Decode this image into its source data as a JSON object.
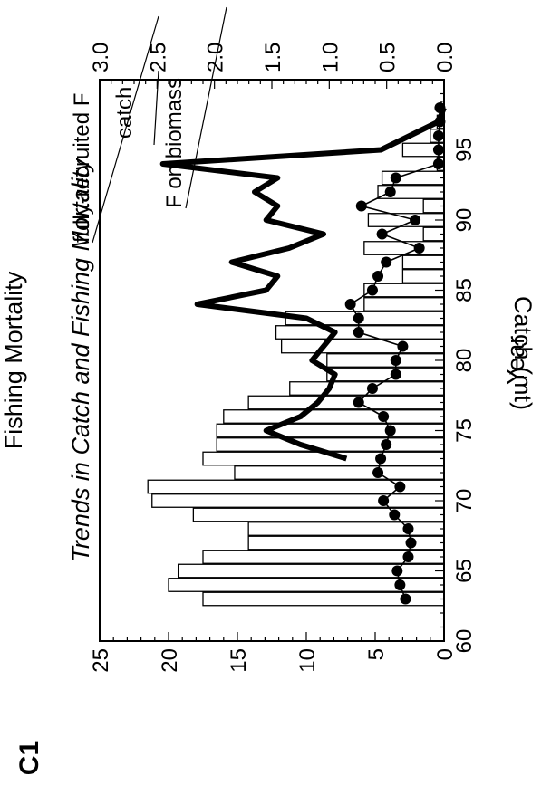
{
  "panel_label": "C1",
  "chart_data": {
    "type": "bar",
    "orientation": "rotated-90-ccw",
    "title": "Trends in Catch and Fishing Mortality",
    "xlabel": "Year",
    "ylabel": "Catch (mt)",
    "y2label": "Fishing Mortality",
    "xlim": [
      60,
      100
    ],
    "ylim": [
      0,
      25
    ],
    "y2lim": [
      0,
      3.0
    ],
    "xticks": [
      "60",
      "65",
      "70",
      "75",
      "80",
      "85",
      "90",
      "95"
    ],
    "yticks": [
      "0",
      "5",
      "10",
      "15",
      "20",
      "25"
    ],
    "y2ticks": [
      "0.0",
      "0.5",
      "1.0",
      "1.5",
      "2.0",
      "2.5",
      "3.0"
    ],
    "annotations": {
      "catch": "catch",
      "f_biomass": "F on biomass",
      "f_recruited": "fully-recruited F"
    },
    "series": [
      {
        "name": "catch",
        "style": "bars",
        "x": [
          63,
          64,
          65,
          66,
          67,
          68,
          69,
          70,
          71,
          72,
          73,
          74,
          75,
          76,
          77,
          78,
          79,
          80,
          81,
          82,
          83,
          84,
          85,
          86,
          87,
          88,
          89,
          90,
          91,
          92,
          93,
          94,
          95,
          96,
          97,
          98
        ],
        "values": [
          17.5,
          20.0,
          19.3,
          17.5,
          14.2,
          14.2,
          18.2,
          21.2,
          21.5,
          15.2,
          17.5,
          16.5,
          16.5,
          16.0,
          14.2,
          11.2,
          8.5,
          8.5,
          11.8,
          12.2,
          11.5,
          5.8,
          5.8,
          3.0,
          3.0,
          5.8,
          1.5,
          5.5,
          1.5,
          4.8,
          4.5,
          0.5,
          3.0,
          1.0,
          0.5,
          0.2
        ]
      },
      {
        "name": "F on biomass",
        "style": "line-dots",
        "axis": "y",
        "x": [
          63,
          64,
          65,
          66,
          67,
          68,
          69,
          70,
          71,
          72,
          73,
          74,
          75,
          76,
          77,
          78,
          79,
          80,
          81,
          82,
          83,
          84,
          85,
          86,
          87,
          88,
          89,
          90,
          91,
          92,
          93,
          94,
          95,
          96,
          97,
          98
        ],
        "values": [
          2.8,
          3.2,
          3.4,
          2.6,
          2.4,
          2.6,
          3.6,
          4.4,
          3.2,
          4.8,
          4.6,
          4.2,
          3.9,
          4.4,
          6.2,
          5.2,
          3.5,
          3.5,
          3.0,
          6.2,
          6.2,
          6.8,
          5.2,
          4.8,
          4.2,
          1.8,
          4.5,
          2.1,
          6.0,
          3.9,
          3.5,
          0.4,
          0.4,
          0.4,
          0.3,
          0.3
        ]
      },
      {
        "name": "fully-recruited F",
        "style": "thick-line",
        "axis": "y2",
        "x": [
          73,
          74,
          75,
          76,
          77,
          78,
          79,
          80,
          81,
          82,
          83,
          84,
          85,
          86,
          87,
          88,
          89,
          90,
          91,
          92,
          93,
          94,
          95,
          96,
          97,
          98
        ],
        "values": [
          0.85,
          1.25,
          1.55,
          1.25,
          1.1,
          1.0,
          0.95,
          1.15,
          1.05,
          0.95,
          1.2,
          2.15,
          1.55,
          1.45,
          1.85,
          1.35,
          1.05,
          1.55,
          1.45,
          1.65,
          1.45,
          2.45,
          0.55,
          0.3,
          0.05,
          0.0
        ]
      }
    ]
  }
}
